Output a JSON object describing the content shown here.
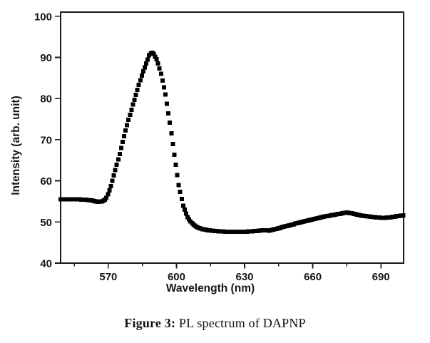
{
  "figure": {
    "caption_label": "Figure 3:",
    "caption_text": " PL spectrum of DAPNP"
  },
  "style": {
    "background": "#ffffff",
    "axis_color": "#1b1b1b",
    "text_color": "#161616",
    "marker_color": "#000000"
  },
  "chart_data": {
    "type": "scatter",
    "title": "",
    "xlabel": "Wavelength (nm)",
    "ylabel": "Intensity (arb. unit)",
    "xlim": [
      549,
      700
    ],
    "ylim": [
      40,
      101
    ],
    "x_major_ticks": [
      570,
      600,
      630,
      660,
      690
    ],
    "x_minor_ticks": [
      555,
      585,
      615,
      645,
      675
    ],
    "y_major_ticks": [
      40,
      50,
      60,
      70,
      80,
      90,
      100
    ],
    "grid": false,
    "legend": "none",
    "marker": "filled-square",
    "marker_color": "#000000",
    "marker_step_nm": 0.65,
    "peak": {
      "wavelength_nm": 588.5,
      "intensity": 91.2
    },
    "secondary_bump": {
      "wavelength_nm": 675,
      "intensity": 52.3
    },
    "baseline_left": 55.5,
    "minimum": {
      "wavelength_nm": 626,
      "intensity": 47.6
    },
    "series": [
      {
        "name": "PL spectrum of DAPNP",
        "points": [
          [
            549,
            55.5
          ],
          [
            553,
            55.5
          ],
          [
            557,
            55.5
          ],
          [
            560,
            55.4
          ],
          [
            563,
            55.2
          ],
          [
            565.5,
            54.9
          ],
          [
            567.5,
            55.0
          ],
          [
            569,
            55.6
          ],
          [
            571,
            58.5
          ],
          [
            573,
            62.5
          ],
          [
            575,
            66.5
          ],
          [
            577,
            71.0
          ],
          [
            579,
            75.0
          ],
          [
            581,
            78.8
          ],
          [
            583,
            82.5
          ],
          [
            585,
            86.0
          ],
          [
            586.5,
            88.2
          ],
          [
            588,
            90.5
          ],
          [
            589,
            91.2
          ],
          [
            590,
            90.8
          ],
          [
            591.5,
            89.3
          ],
          [
            593,
            86.5
          ],
          [
            595,
            81.5
          ],
          [
            597,
            74.5
          ],
          [
            599,
            66.5
          ],
          [
            601,
            59.0
          ],
          [
            603,
            53.8
          ],
          [
            605,
            51.0
          ],
          [
            607,
            49.6
          ],
          [
            609,
            48.8
          ],
          [
            611,
            48.3
          ],
          [
            614,
            48.0
          ],
          [
            617,
            47.8
          ],
          [
            620,
            47.7
          ],
          [
            623,
            47.6
          ],
          [
            626,
            47.6
          ],
          [
            629,
            47.6
          ],
          [
            632,
            47.7
          ],
          [
            635,
            47.8
          ],
          [
            638,
            48.0
          ],
          [
            641,
            47.9
          ],
          [
            644,
            48.3
          ],
          [
            647,
            48.8
          ],
          [
            650,
            49.2
          ],
          [
            653,
            49.7
          ],
          [
            656,
            50.1
          ],
          [
            659,
            50.5
          ],
          [
            662,
            50.9
          ],
          [
            665,
            51.3
          ],
          [
            668,
            51.6
          ],
          [
            671,
            51.9
          ],
          [
            673,
            52.1
          ],
          [
            675,
            52.3
          ],
          [
            677,
            52.1
          ],
          [
            679,
            51.9
          ],
          [
            682,
            51.5
          ],
          [
            685,
            51.3
          ],
          [
            688,
            51.1
          ],
          [
            691,
            51.0
          ],
          [
            694,
            51.1
          ],
          [
            697,
            51.4
          ],
          [
            700,
            51.6
          ]
        ]
      }
    ]
  }
}
